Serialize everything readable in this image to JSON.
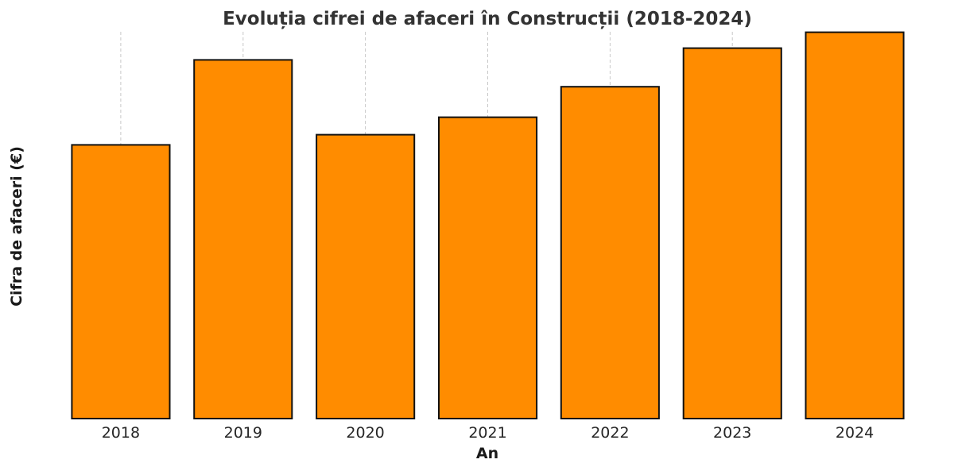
{
  "chart_data": {
    "type": "bar",
    "title": "Evoluția cifrei de afaceri în Construcții (2018-2024)",
    "xlabel": "An",
    "ylabel": "Cifra de afaceri (€)",
    "categories": [
      "2018",
      "2019",
      "2020",
      "2021",
      "2022",
      "2023",
      "2024"
    ],
    "values": [
      67.3,
      88.2,
      69.8,
      74.1,
      81.6,
      91.1,
      95.0
    ],
    "ylim": [
      0,
      100
    ],
    "grid": "vertical-dashed",
    "y_tick_labels_shown": false,
    "bar_color": "#ff8c00",
    "bar_edge_color": "#111111"
  }
}
